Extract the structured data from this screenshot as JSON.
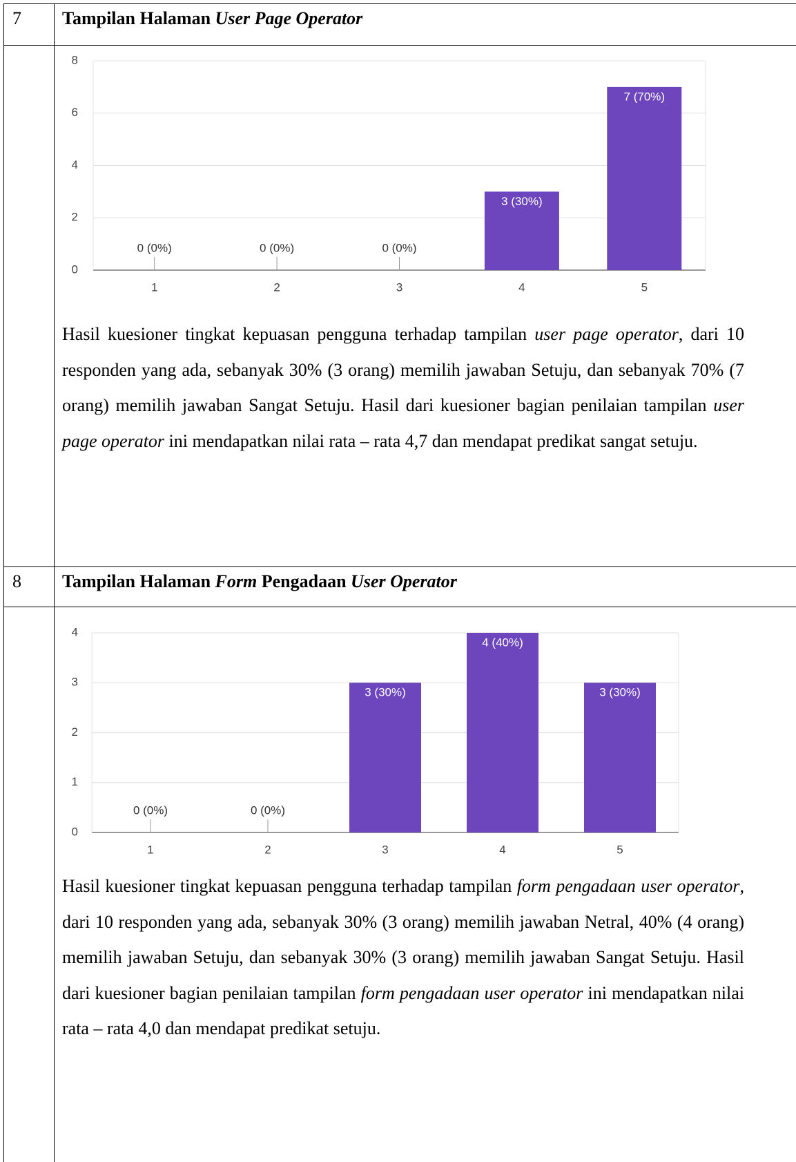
{
  "rows": [
    {
      "number": "7",
      "title": [
        {
          "text": "Tampilan Halaman "
        },
        {
          "text": "User Page Operator",
          "italic": true
        }
      ],
      "paragraph": [
        {
          "text": "Hasil kuesioner tingkat kepuasan pengguna terhadap tampilan "
        },
        {
          "text": "user page operator",
          "italic": true
        },
        {
          "text": ", dari 10 responden yang ada, sebanyak 30% (3 orang) memilih jawaban Setuju, dan sebanyak 70% (7 orang) memilih jawaban Sangat Setuju. Hasil dari kuesioner bagian penilaian tampilan "
        },
        {
          "text": "user page operator",
          "italic": true
        },
        {
          "text": " ini mendapatkan nilai rata – rata 4,7 dan mendapat predikat sangat setuju."
        }
      ]
    },
    {
      "number": "8",
      "title": [
        {
          "text": "Tampilan Halaman "
        },
        {
          "text": "Form",
          "italic": true
        },
        {
          "text": " Pengadaan "
        },
        {
          "text": "User Operator",
          "italic": true
        }
      ],
      "paragraph": [
        {
          "text": "Hasil kuesioner tingkat kepuasan pengguna terhadap tampilan "
        },
        {
          "text": "form pengadaan user operator",
          "italic": true
        },
        {
          "text": ", dari 10 responden yang ada, sebanyak 30% (3 orang) memilih jawaban Netral, 40% (4 orang) memilih jawaban Setuju, dan sebanyak 30% (3 orang) memilih jawaban Sangat Setuju. Hasil dari kuesioner bagian penilaian tampilan "
        },
        {
          "text": "form pengadaan user operator",
          "italic": true
        },
        {
          "text": " ini mendapatkan nilai rata – rata 4,0 dan mendapat predikat setuju."
        }
      ]
    }
  ],
  "chart_data": [
    {
      "type": "bar",
      "categories": [
        "1",
        "2",
        "3",
        "4",
        "5"
      ],
      "values": [
        0,
        0,
        0,
        3,
        7
      ],
      "value_labels": [
        "0 (0%)",
        "0 (0%)",
        "0 (0%)",
        "3 (30%)",
        "7 (70%)"
      ],
      "color": "#6d45bd",
      "ylim": [
        0,
        8
      ],
      "yticks": [
        0,
        2,
        4,
        6,
        8
      ],
      "grid": true
    },
    {
      "type": "bar",
      "categories": [
        "1",
        "2",
        "3",
        "4",
        "5"
      ],
      "values": [
        0,
        0,
        3,
        4,
        3
      ],
      "value_labels": [
        "0 (0%)",
        "0 (0%)",
        "3 (30%)",
        "4 (40%)",
        "3 (30%)"
      ],
      "color": "#6d45bd",
      "ylim": [
        0,
        4
      ],
      "yticks": [
        0,
        1,
        2,
        3,
        4
      ],
      "grid": true
    }
  ]
}
